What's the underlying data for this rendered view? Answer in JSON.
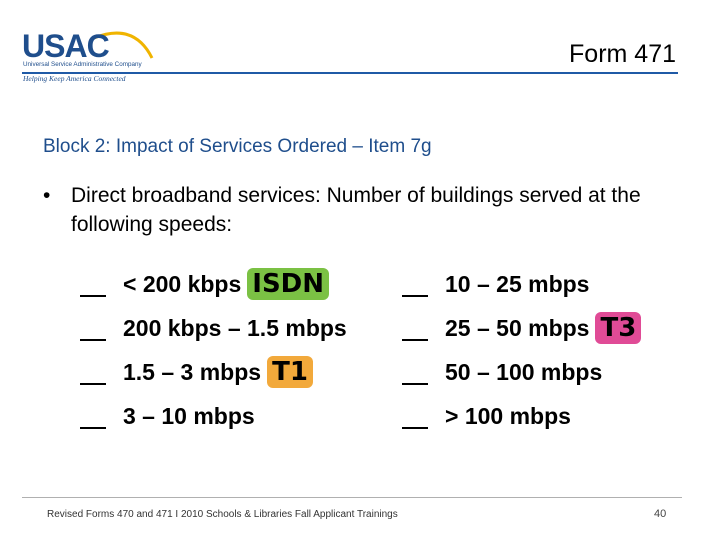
{
  "header": {
    "logo_text": "USAC",
    "logo_subtitle": "Universal Service Administrative Company",
    "logo_tagline": "Helping Keep America Connected",
    "form_title": "Form 471"
  },
  "block_title": "Block 2: Impact of Services Ordered – Item 7g",
  "bullet": {
    "marker": "•",
    "text": "Direct broadband services: Number of buildings served at the following speeds:"
  },
  "speeds_left": [
    {
      "label": "< 200 kbps",
      "badge": "ISDN"
    },
    {
      "label": "200 kbps – 1.5 mbps",
      "badge": ""
    },
    {
      "label": "1.5 – 3 mbps",
      "badge": "T1"
    },
    {
      "label": "3 – 10 mbps",
      "badge": ""
    }
  ],
  "speeds_right": [
    {
      "label": "10 – 25 mbps",
      "badge": ""
    },
    {
      "label": "25 – 50 mbps",
      "badge": "T3"
    },
    {
      "label": "50 – 100 mbps",
      "badge": ""
    },
    {
      "label": "> 100 mbps",
      "badge": ""
    }
  ],
  "colors": {
    "isdn_badge": "#7bc144",
    "t1_badge": "#f2a93b",
    "t3_badge": "#e04b96",
    "title_blue": "#1f4e8c"
  },
  "footer": {
    "text": "Revised Forms 470 and 471 I 2010 Schools & Libraries Fall Applicant Trainings",
    "page_number": "40"
  }
}
